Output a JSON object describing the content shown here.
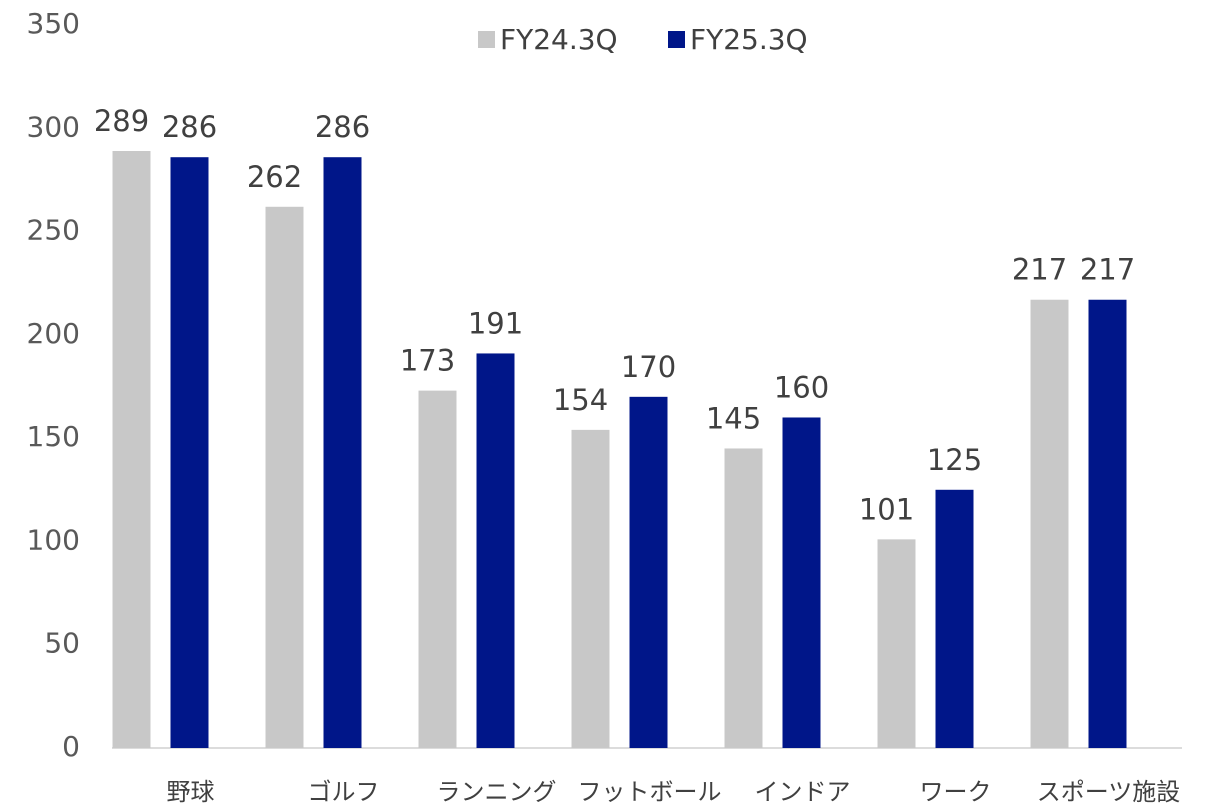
{
  "chart_data": {
    "type": "bar",
    "categories": [
      "野球",
      "ゴルフ",
      "ランニング",
      "フットボール",
      "インドア",
      "ワーク",
      "スポーツ施設"
    ],
    "series": [
      {
        "name": "FY24.3Q",
        "color": "#c8c8c8",
        "values": [
          289,
          262,
          173,
          154,
          145,
          101,
          217
        ]
      },
      {
        "name": "FY25.3Q",
        "color": "#001689",
        "values": [
          286,
          286,
          191,
          170,
          160,
          125,
          217
        ]
      }
    ],
    "ylim": [
      0,
      350
    ],
    "yticks": [
      0,
      50,
      100,
      150,
      200,
      250,
      300,
      350
    ],
    "grid": false,
    "legend": "top"
  }
}
